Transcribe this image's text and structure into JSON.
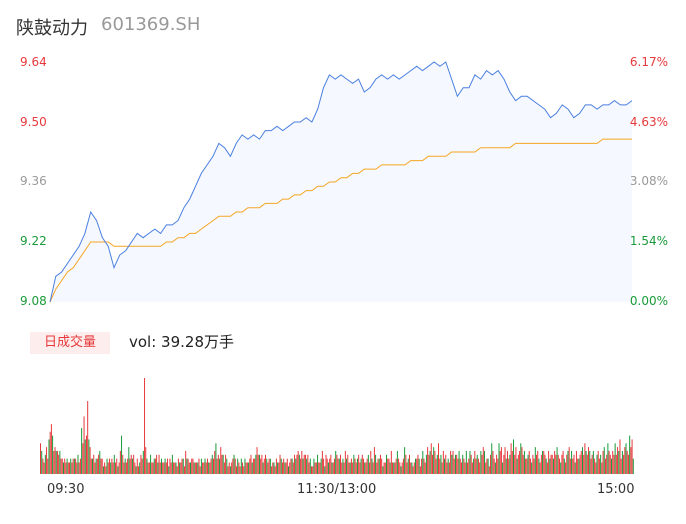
{
  "header": {
    "name": "陕鼓动力",
    "code": "601369.SH"
  },
  "volume": {
    "tag": "日成交量",
    "text": "vol: 39.28万手"
  },
  "colors": {
    "up": "#e6393b",
    "down": "#1a9a3a",
    "price_line": "#4a7fe0",
    "avg_line": "#f5a623",
    "neutral": "#999999"
  },
  "chart_data": [
    {
      "type": "line",
      "yticks_left": [
        "9.64",
        "9.50",
        "9.36",
        "9.22",
        "9.08"
      ],
      "yticks_right": [
        "6.17%",
        "4.63%",
        "3.08%",
        "1.54%",
        "0.00%"
      ],
      "xticks": [
        "09:30",
        "11:30/13:00",
        "15:00"
      ],
      "ylim": [
        9.08,
        9.64
      ],
      "series": [
        {
          "role": "price",
          "values": [
            9.08,
            9.14,
            9.15,
            9.17,
            9.19,
            9.21,
            9.24,
            9.29,
            9.27,
            9.23,
            9.21,
            9.16,
            9.19,
            9.2,
            9.22,
            9.24,
            9.23,
            9.24,
            9.25,
            9.24,
            9.26,
            9.26,
            9.27,
            9.3,
            9.32,
            9.35,
            9.38,
            9.4,
            9.42,
            9.45,
            9.44,
            9.42,
            9.45,
            9.47,
            9.46,
            9.47,
            9.46,
            9.48,
            9.48,
            9.49,
            9.48,
            9.49,
            9.5,
            9.5,
            9.51,
            9.5,
            9.53,
            9.58,
            9.61,
            9.6,
            9.61,
            9.6,
            9.59,
            9.6,
            9.57,
            9.58,
            9.6,
            9.61,
            9.6,
            9.61,
            9.6,
            9.61,
            9.62,
            9.63,
            9.62,
            9.63,
            9.64,
            9.63,
            9.64,
            9.6,
            9.56,
            9.58,
            9.58,
            9.61,
            9.6,
            9.62,
            9.61,
            9.62,
            9.6,
            9.57,
            9.55,
            9.56,
            9.56,
            9.55,
            9.54,
            9.53,
            9.51,
            9.52,
            9.54,
            9.53,
            9.51,
            9.52,
            9.54,
            9.54,
            9.53,
            9.54,
            9.54,
            9.55,
            9.54,
            9.54,
            9.55
          ]
        },
        {
          "role": "average",
          "values": [
            9.08,
            9.11,
            9.13,
            9.15,
            9.16,
            9.18,
            9.2,
            9.22,
            9.22,
            9.22,
            9.22,
            9.21,
            9.21,
            9.21,
            9.21,
            9.21,
            9.21,
            9.21,
            9.21,
            9.21,
            9.22,
            9.22,
            9.23,
            9.23,
            9.24,
            9.24,
            9.25,
            9.26,
            9.27,
            9.28,
            9.28,
            9.28,
            9.29,
            9.29,
            9.3,
            9.3,
            9.3,
            9.31,
            9.31,
            9.31,
            9.32,
            9.32,
            9.33,
            9.33,
            9.34,
            9.34,
            9.35,
            9.35,
            9.36,
            9.36,
            9.37,
            9.37,
            9.38,
            9.38,
            9.39,
            9.39,
            9.39,
            9.4,
            9.4,
            9.4,
            9.4,
            9.4,
            9.41,
            9.41,
            9.41,
            9.42,
            9.42,
            9.42,
            9.42,
            9.43,
            9.43,
            9.43,
            9.43,
            9.43,
            9.44,
            9.44,
            9.44,
            9.44,
            9.44,
            9.44,
            9.45,
            9.45,
            9.45,
            9.45,
            9.45,
            9.45,
            9.45,
            9.45,
            9.45,
            9.45,
            9.45,
            9.45,
            9.45,
            9.45,
            9.45,
            9.46,
            9.46,
            9.46,
            9.46,
            9.46,
            9.46
          ]
        }
      ]
    },
    {
      "type": "bar",
      "values": [
        8,
        6,
        4,
        3,
        5,
        7,
        4,
        9,
        11,
        13,
        10,
        6,
        7,
        6,
        6,
        5,
        6,
        4,
        4,
        3,
        4,
        3,
        4,
        3,
        3,
        4,
        3,
        4,
        4,
        4,
        3,
        5,
        3,
        4,
        12,
        8,
        15,
        9,
        10,
        19,
        9,
        7,
        4,
        4,
        5,
        3,
        4,
        4,
        5,
        6,
        4,
        4,
        2,
        3,
        2,
        4,
        3,
        4,
        3,
        4,
        3,
        5,
        3,
        4,
        2,
        3,
        6,
        10,
        5,
        3,
        4,
        3,
        4,
        7,
        4,
        5,
        4,
        5,
        3,
        2,
        4,
        2,
        3,
        5,
        4,
        6,
        25,
        7,
        4,
        3,
        3,
        5,
        3,
        3,
        4,
        4,
        5,
        3,
        5,
        3,
        4,
        3,
        3,
        4,
        3,
        4,
        2,
        4,
        3,
        5,
        3,
        3,
        3,
        2,
        4,
        3,
        3,
        4,
        4,
        2,
        6,
        4,
        4,
        3,
        3,
        4,
        4,
        3,
        3,
        3,
        3,
        4,
        2,
        4,
        3,
        3,
        4,
        3,
        4,
        3,
        3,
        4,
        5,
        4,
        6,
        8,
        4,
        5,
        4,
        7,
        5,
        5,
        3,
        5,
        4,
        2,
        3,
        2,
        3,
        4,
        5,
        4,
        2,
        4,
        3,
        2,
        4,
        3,
        2,
        4,
        3,
        3,
        3,
        4,
        5,
        3,
        4,
        4,
        5,
        7,
        5,
        5,
        4,
        5,
        3,
        4,
        5,
        4,
        3,
        4,
        4,
        2,
        3,
        3,
        2,
        4,
        3,
        3,
        5,
        4,
        3,
        4,
        3,
        3,
        4,
        2,
        3,
        4,
        4,
        3,
        5,
        4,
        5,
        6,
        5,
        4,
        6,
        4,
        5,
        5,
        4,
        5,
        3,
        4,
        2,
        2,
        4,
        3,
        3,
        5,
        3,
        3,
        4,
        6,
        4,
        2,
        5,
        4,
        3,
        4,
        5,
        3,
        3,
        4,
        6,
        5,
        4,
        4,
        5,
        3,
        4,
        3,
        6,
        4,
        5,
        3,
        3,
        4,
        3,
        5,
        4,
        3,
        4,
        5,
        3,
        4,
        5,
        4,
        3,
        3,
        4,
        5,
        3,
        6,
        4,
        3,
        7,
        5,
        3,
        4,
        4,
        5,
        4,
        2,
        3,
        3,
        5,
        4,
        4,
        3,
        6,
        3,
        3,
        3,
        4,
        6,
        4,
        3,
        2,
        3,
        4,
        7,
        5,
        3,
        4,
        5,
        3,
        3,
        2,
        3,
        4,
        4,
        5,
        4,
        2,
        4,
        6,
        4,
        3,
        5,
        7,
        5,
        6,
        8,
        5,
        7,
        6,
        4,
        5,
        8,
        4,
        5,
        3,
        6,
        4,
        5,
        3,
        4,
        3,
        6,
        5,
        6,
        4,
        5,
        5,
        4,
        6,
        4,
        3,
        5,
        4,
        3,
        6,
        3,
        4,
        6,
        5,
        3,
        4,
        6,
        4,
        5,
        4,
        3,
        6,
        5,
        7,
        6,
        3,
        4,
        4,
        2,
        5,
        8,
        6,
        4,
        3,
        5,
        4,
        8,
        6,
        7,
        3,
        5,
        7,
        4,
        6,
        4,
        5,
        8,
        6,
        9,
        5,
        7,
        4,
        5,
        6,
        8,
        7,
        5,
        6,
        4,
        4,
        5,
        6,
        4,
        3,
        5,
        4,
        7,
        5,
        6,
        4,
        3,
        5,
        6,
        6,
        5,
        4,
        3,
        6,
        4,
        5,
        5,
        4,
        6,
        5,
        7,
        5,
        4,
        3,
        5,
        6,
        4,
        3,
        5,
        6,
        7,
        4,
        6,
        4,
        5,
        3,
        6,
        4,
        4,
        5,
        6,
        7,
        5,
        8,
        6,
        5,
        7,
        6,
        4,
        5,
        6,
        4,
        3,
        5,
        6,
        4,
        5,
        3,
        6,
        7,
        4,
        5,
        8,
        6,
        5,
        4,
        6,
        5,
        8,
        5,
        7,
        6,
        9,
        4,
        6,
        5,
        7,
        8,
        6,
        5,
        10,
        7,
        9,
        4
      ]
    }
  ]
}
